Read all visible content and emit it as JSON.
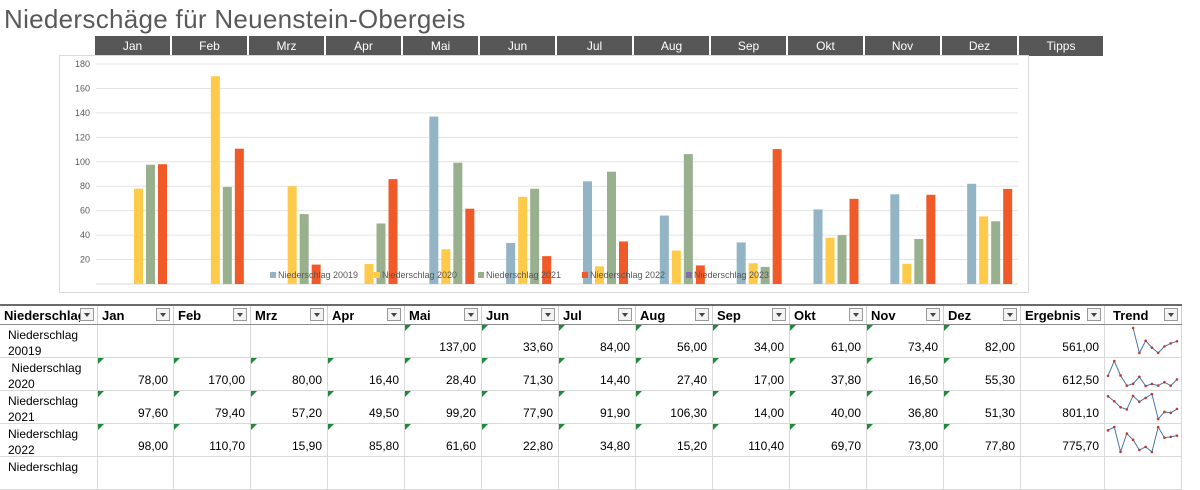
{
  "title": "Niederschäge für Neuenstein-Obergeis",
  "month_buttons": [
    "Jan",
    "Feb",
    "Mrz",
    "Apr",
    "Mai",
    "Jun",
    "Jul",
    "Aug",
    "Sep",
    "Okt",
    "Nov",
    "Dez",
    "Tipps"
  ],
  "table": {
    "headers": [
      "Niederschlag",
      "Jan",
      "Feb",
      "Mrz",
      "Apr",
      "Mai",
      "Jun",
      "Jul",
      "Aug",
      "Sep",
      "Okt",
      "Nov",
      "Dez",
      "Ergebnis",
      "Trend"
    ],
    "rows": [
      {
        "label": "Niederschlag\n20019",
        "values": [
          "",
          "",
          "",
          "",
          "137,00",
          "33,60",
          "84,00",
          "56,00",
          "34,00",
          "61,00",
          "73,40",
          "82,00",
          "561,00"
        ]
      },
      {
        "label": " Niederschlag\n2020",
        "values": [
          "78,00",
          "170,00",
          "80,00",
          "16,40",
          "28,40",
          "71,30",
          "14,40",
          "27,40",
          "17,00",
          "37,80",
          "16,50",
          "55,30",
          "612,50"
        ]
      },
      {
        "label": "Niederschlag\n2021",
        "values": [
          "97,60",
          "79,40",
          "57,20",
          "49,50",
          "99,20",
          "77,90",
          "91,90",
          "106,30",
          "14,00",
          "40,00",
          "36,80",
          "51,30",
          "801,10"
        ]
      },
      {
        "label": "Niederschlag\n2022",
        "values": [
          "98,00",
          "110,70",
          "15,90",
          "85,80",
          "61,60",
          "22,80",
          "34,80",
          "15,20",
          "110,40",
          "69,70",
          "73,00",
          "77,80",
          "775,70"
        ]
      },
      {
        "label": "Niederschlag",
        "values": [
          "",
          "",
          "",
          "",
          "",
          "",
          "",
          "",
          "",
          "",
          "",
          "",
          ""
        ]
      }
    ]
  },
  "chart_data": {
    "type": "bar",
    "categories": [
      "Jan",
      "Feb",
      "Mrz",
      "Apr",
      "Mai",
      "Jun",
      "Jul",
      "Aug",
      "Sep",
      "Okt",
      "Nov",
      "Dez"
    ],
    "series": [
      {
        "name": "Niederschlag 20019",
        "color": "#92b4c4",
        "values": [
          null,
          null,
          null,
          null,
          137.0,
          33.6,
          84.0,
          56.0,
          34.0,
          61.0,
          73.4,
          82.0
        ]
      },
      {
        "name": "Niederschlag 2020",
        "color": "#ffc94a",
        "values": [
          78.0,
          170.0,
          80.0,
          16.4,
          28.4,
          71.3,
          14.4,
          27.4,
          17.0,
          37.8,
          16.5,
          55.3
        ]
      },
      {
        "name": "Niederschlag 2021",
        "color": "#98b08e",
        "values": [
          97.6,
          79.4,
          57.2,
          49.5,
          99.2,
          77.9,
          91.9,
          106.3,
          14.0,
          40.0,
          36.8,
          51.3
        ]
      },
      {
        "name": "Niederschlag 2022",
        "color": "#f05a28",
        "values": [
          98.0,
          110.7,
          15.9,
          85.8,
          61.6,
          22.8,
          34.8,
          15.2,
          110.4,
          69.7,
          73.0,
          77.8
        ]
      },
      {
        "name": "Niederschlag 2023",
        "color": "#8470a8",
        "values": [
          null,
          null,
          null,
          null,
          null,
          null,
          null,
          null,
          null,
          null,
          null,
          null
        ]
      }
    ],
    "yticks": [
      "20",
      "40",
      "60",
      "80",
      "100",
      "120",
      "140",
      "160",
      "180"
    ],
    "ylim": [
      0,
      180
    ],
    "grid": true,
    "legend": "bottom-inside"
  }
}
